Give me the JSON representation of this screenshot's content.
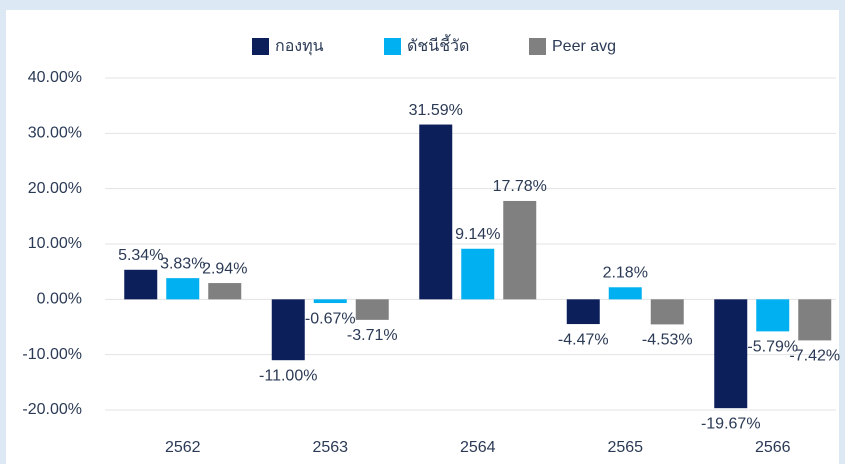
{
  "chart_data": {
    "type": "bar",
    "categories": [
      "2562",
      "2563",
      "2564",
      "2565",
      "2566"
    ],
    "series": [
      {
        "name": "กองทุน",
        "color": "#0c1f5b",
        "values": [
          5.34,
          -11.0,
          31.59,
          -4.47,
          -19.67
        ],
        "value_labels": [
          "5.34%",
          "-11.00%",
          "31.59%",
          "-4.47%",
          "-19.67%"
        ]
      },
      {
        "name": "ดัชนีชี้วัด",
        "color": "#00b0f0",
        "values": [
          3.83,
          -0.67,
          9.14,
          2.18,
          -5.79
        ],
        "value_labels": [
          "3.83%",
          "-0.67%",
          "9.14%",
          "2.18%",
          "-5.79%"
        ]
      },
      {
        "name": "Peer avg",
        "color": "#808080",
        "values": [
          2.94,
          -3.71,
          17.78,
          -4.53,
          -7.42
        ],
        "value_labels": [
          "2.94%",
          "-3.71%",
          "17.78%",
          "-4.53%",
          "-7.42%"
        ]
      }
    ],
    "ylim": [
      -20,
      40
    ],
    "yticks": [
      {
        "value": -20,
        "label": "-20.00%"
      },
      {
        "value": -10,
        "label": "-10.00%"
      },
      {
        "value": 0,
        "label": "0.00%"
      },
      {
        "value": 10,
        "label": "10.00%"
      },
      {
        "value": 20,
        "label": "20.00%"
      },
      {
        "value": 30,
        "label": "30.00%"
      },
      {
        "value": 40,
        "label": "40.00%"
      }
    ],
    "grid": true
  }
}
